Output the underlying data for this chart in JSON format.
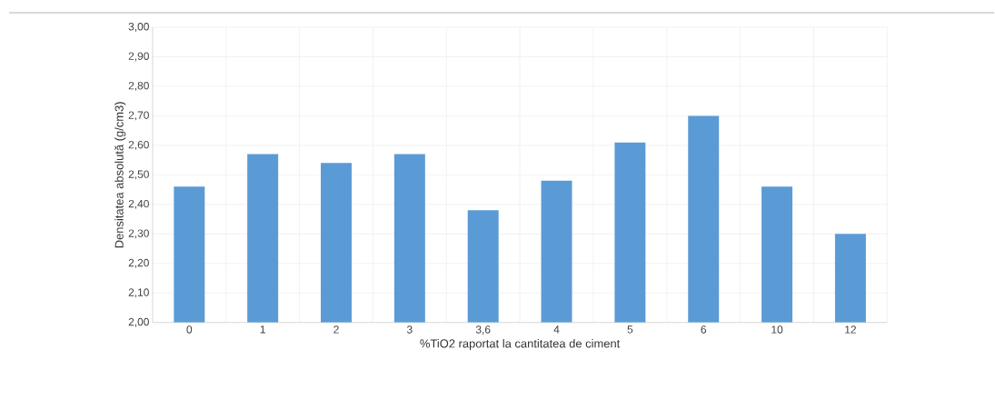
{
  "chart_data": {
    "type": "bar",
    "xlabel": "%TiO2 raportat la cantitatea de ciment",
    "ylabel": "Densitatea absolută (g/cm3)",
    "categories": [
      "0",
      "1",
      "2",
      "3",
      "3,6",
      "4",
      "5",
      "6",
      "10",
      "12"
    ],
    "values": [
      2.46,
      2.57,
      2.54,
      2.57,
      2.38,
      2.48,
      2.61,
      2.7,
      2.46,
      2.3
    ],
    "color": "#5b9bd5",
    "ylim": [
      2.0,
      3.0
    ],
    "yticks": [
      {
        "value": 2.0,
        "label": "2,00"
      },
      {
        "value": 2.1,
        "label": "2,10"
      },
      {
        "value": 2.2,
        "label": "2,20"
      },
      {
        "value": 2.3,
        "label": "2,30"
      },
      {
        "value": 2.4,
        "label": "2,40"
      },
      {
        "value": 2.5,
        "label": "2,50"
      },
      {
        "value": 2.6,
        "label": "2,60"
      },
      {
        "value": 2.7,
        "label": "2,70"
      },
      {
        "value": 2.8,
        "label": "2,80"
      },
      {
        "value": 2.9,
        "label": "2,90"
      },
      {
        "value": 3.0,
        "label": "3,00"
      }
    ],
    "grid": true
  }
}
